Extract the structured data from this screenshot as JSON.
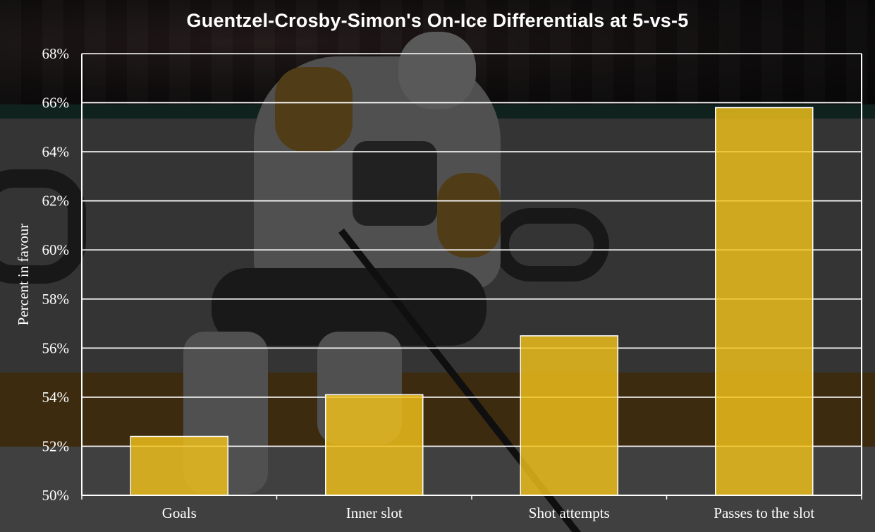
{
  "chart_data": {
    "type": "bar",
    "title": "Guentzel-Crosby-Simon's On-Ice Differentials at 5-vs-5",
    "xlabel": "",
    "ylabel": "Percent in favour",
    "categories": [
      "Goals",
      "Inner slot",
      "Shot attempts",
      "Passes to the slot"
    ],
    "values": [
      52.4,
      54.1,
      56.5,
      65.8
    ],
    "ylim": [
      50,
      68
    ],
    "yticks": [
      50,
      52,
      54,
      56,
      58,
      60,
      62,
      64,
      66,
      68
    ],
    "ytick_suffix": "%",
    "grid": true,
    "legend": "none",
    "bar_color": "#F2C21B",
    "bar_edge_color": "#FFFFFF",
    "gridline_color": "#FFFFFF",
    "text_color": "#FFFFFF"
  }
}
